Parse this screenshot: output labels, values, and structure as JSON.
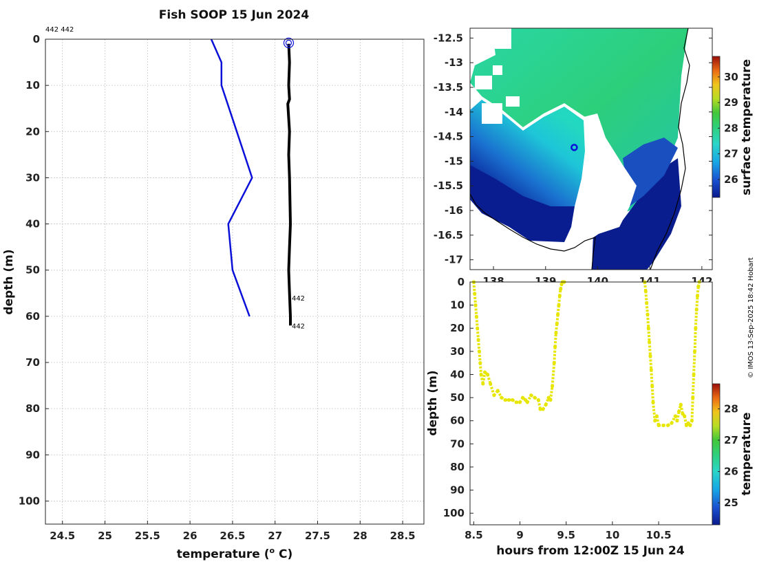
{
  "title": "Fish SOOP 15 Jun 2024",
  "profile_ids": "442 442",
  "credit": "© IMOS 13-Sep-2025 18:42 Hobart",
  "colors": {
    "profile_blue": "#0a10d8",
    "profile_black": "#000000",
    "track_yellow": "#e6e600",
    "land": "#ffffff"
  },
  "chart_data": [
    {
      "type": "line",
      "title": "Fish SOOP 15 Jun 2024",
      "xlabel": "temperature (° C)",
      "ylabel": "depth (m)",
      "xlim": [
        24.3,
        28.75
      ],
      "ylim": [
        105,
        0
      ],
      "xticks": [
        "24.5",
        "25",
        "25.5",
        "26",
        "26.5",
        "27",
        "27.5",
        "28",
        "28.5"
      ],
      "yticks": [
        "0",
        "10",
        "20",
        "30",
        "40",
        "50",
        "60",
        "70",
        "80",
        "90",
        "100"
      ],
      "annotations": [
        {
          "label": "442",
          "x": 27.18,
          "y": 56
        },
        {
          "label": "442",
          "x": 27.18,
          "y": 62
        }
      ],
      "series": [
        {
          "name": "profile-blue",
          "color": "#0a10d8",
          "x": [
            26.25,
            26.37,
            26.37,
            26.55,
            26.73,
            26.45,
            26.5,
            26.7
          ],
          "y": [
            0,
            5,
            10,
            20,
            30,
            40,
            50,
            60
          ]
        },
        {
          "name": "profile-black",
          "color": "#000000",
          "x": [
            27.16,
            27.17,
            27.16,
            27.17,
            27.15,
            27.17,
            27.16,
            27.17,
            27.18,
            27.17,
            27.16,
            27.17,
            27.18,
            27.18
          ],
          "y": [
            1,
            5,
            10,
            13,
            14,
            20,
            25,
            30,
            40,
            45,
            50,
            55,
            60,
            62
          ]
        }
      ],
      "marker": {
        "x": 27.16,
        "y": 0.8
      }
    },
    {
      "type": "heatmap",
      "colorbar_label": "surface temperature",
      "xticks": [
        "138",
        "139",
        "140",
        "141",
        "142"
      ],
      "yticks": [
        "-12.5",
        "-13",
        "-13.5",
        "-14",
        "-14.5",
        "-15",
        "-15.5",
        "-16",
        "-16.5",
        "-17"
      ],
      "colorbar_ticks": [
        "26",
        "27",
        "28",
        "29",
        "30"
      ],
      "clim": [
        25.3,
        30.8
      ],
      "xlim": [
        137.55,
        142.2
      ],
      "ylim": [
        -17.2,
        -12.3
      ],
      "position_marker": {
        "lon": 139.55,
        "lat": -14.72
      }
    },
    {
      "type": "scatter",
      "xlabel": "hours from 12:00Z 15 Jun 24",
      "ylabel": "depth (m)",
      "colorbar_label": "temperature",
      "xticks": [
        "8.5",
        "9",
        "9.5",
        "10",
        "10.5"
      ],
      "yticks": [
        "0",
        "10",
        "20",
        "30",
        "40",
        "50",
        "60",
        "70",
        "80",
        "90",
        "100"
      ],
      "colorbar_ticks": [
        "25",
        "26",
        "27",
        "28"
      ],
      "clim": [
        24.3,
        28.8
      ],
      "xlim": [
        8.46,
        11.08
      ],
      "ylim": [
        105,
        0
      ],
      "series": [
        {
          "name": "dive-1",
          "x": [
            8.5,
            8.51,
            8.52,
            8.53,
            8.54,
            8.55,
            8.56,
            8.57,
            8.58,
            8.6,
            8.62,
            8.65,
            8.68,
            8.72,
            8.76,
            8.8,
            8.84,
            8.88,
            8.92,
            8.96,
            9.0,
            9.03,
            9.06,
            9.08,
            9.12,
            9.16,
            9.2,
            9.22,
            9.25,
            9.28,
            9.31,
            9.33,
            9.35,
            9.37,
            9.38,
            9.39,
            9.4,
            9.41,
            9.42,
            9.43,
            9.44,
            9.45,
            9.46,
            9.47,
            9.48
          ],
          "y": [
            0,
            5,
            10,
            15,
            20,
            25,
            30,
            35,
            40,
            44,
            39,
            40,
            44,
            49,
            47,
            50,
            51,
            51,
            51,
            52,
            52,
            50,
            51,
            52,
            49,
            50,
            51,
            55,
            55,
            53,
            50,
            51,
            45,
            35,
            28,
            22,
            18,
            14,
            10,
            6,
            3,
            1,
            0,
            0,
            0
          ]
        },
        {
          "name": "dive-2",
          "x": [
            10.35,
            10.36,
            10.37,
            10.38,
            10.39,
            10.4,
            10.41,
            10.42,
            10.43,
            10.44,
            10.46,
            10.48,
            10.5,
            10.55,
            10.6,
            10.64,
            10.68,
            10.7,
            10.72,
            10.74,
            10.76,
            10.78,
            10.8,
            10.82,
            10.84,
            10.86,
            10.87,
            10.88,
            10.89,
            10.9,
            10.91,
            10.92,
            10.93,
            10.94
          ],
          "y": [
            0,
            4,
            9,
            14,
            20,
            26,
            32,
            38,
            45,
            52,
            60,
            58,
            62,
            62,
            62,
            61,
            58,
            60,
            56,
            53,
            57,
            58,
            62,
            61,
            62,
            60,
            50,
            40,
            30,
            20,
            12,
            6,
            2,
            0
          ]
        }
      ]
    }
  ]
}
